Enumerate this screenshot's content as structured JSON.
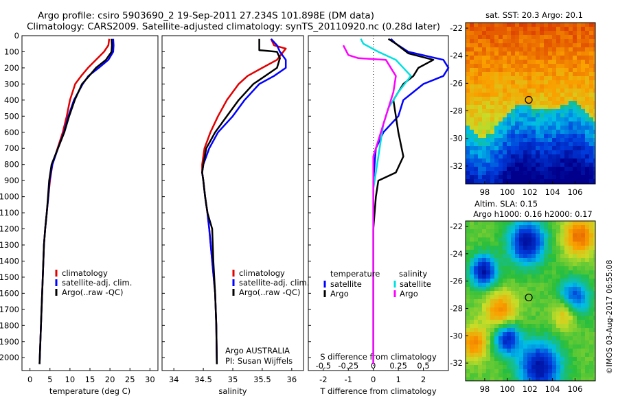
{
  "header": {
    "line1": "Argo profile: csiro 5903690_2 19-Sep-2011 27.234S 101.898E (DM data)",
    "line2": "Climatology: CARS2009. Satellite-adjusted climatology: synTS_20110920.nc (0.28d later)"
  },
  "colors": {
    "climatology": "#e00000",
    "satellite": "#0000ff",
    "argo": "#000000",
    "argo_salinity": "#ff00ff",
    "satellite_salinity": "#00e0e0"
  },
  "chart_data": [
    {
      "type": "line",
      "panel": "temperature",
      "xlabel": "temperature (deg C)",
      "xticks": [
        0,
        5,
        10,
        15,
        20,
        25,
        30
      ],
      "xlim": [
        -2,
        32
      ],
      "ylim": [
        0,
        2080
      ],
      "yticks": [
        0,
        100,
        200,
        300,
        400,
        500,
        600,
        700,
        800,
        900,
        1000,
        1100,
        1200,
        1300,
        1400,
        1500,
        1600,
        1700,
        1800,
        1900,
        2000
      ],
      "legend": [
        "climatology",
        "satellite-adj. clim.",
        "Argo(..raw -QC)"
      ],
      "series": [
        {
          "name": "climatology",
          "color": "#e00000",
          "x": [
            19.8,
            19.6,
            18.5,
            16.5,
            14.5,
            12.8,
            11.3,
            10.0,
            9.2,
            8.2,
            6.9,
            5.6,
            5.0,
            4.6,
            4.2,
            3.8,
            3.5,
            3.2,
            2.9,
            2.6,
            2.4
          ],
          "y": [
            20,
            60,
            100,
            150,
            200,
            250,
            300,
            400,
            500,
            600,
            700,
            800,
            900,
            1000,
            1100,
            1200,
            1300,
            1500,
            1700,
            1900,
            2040
          ]
        },
        {
          "name": "satellite-adj. clim.",
          "color": "#0000ff",
          "x": [
            20.8,
            20.9,
            20.8,
            19.6,
            17.2,
            14.6,
            13.2,
            11.0,
            9.6,
            8.5,
            7.0,
            5.6,
            4.9,
            4.6,
            4.2,
            3.8,
            3.5,
            3.2,
            2.9,
            2.6,
            2.4
          ],
          "y": [
            20,
            60,
            100,
            150,
            200,
            250,
            300,
            400,
            500,
            600,
            700,
            800,
            900,
            1000,
            1100,
            1200,
            1300,
            1500,
            1700,
            1900,
            2040
          ]
        },
        {
          "name": "Argo(..raw -QC)",
          "color": "#000000",
          "x": [
            20.4,
            20.5,
            20.4,
            19.0,
            16.5,
            14.8,
            13.0,
            11.2,
            9.8,
            8.6,
            7.0,
            5.4,
            4.8,
            4.5,
            4.2,
            3.8,
            3.5,
            3.2,
            2.9,
            2.6,
            2.4
          ],
          "y": [
            20,
            60,
            100,
            150,
            200,
            250,
            300,
            400,
            500,
            600,
            700,
            800,
            900,
            1000,
            1100,
            1200,
            1300,
            1500,
            1700,
            1900,
            2040
          ]
        }
      ]
    },
    {
      "type": "line",
      "panel": "salinity",
      "xlabel": "salinity",
      "xticks": [
        34,
        34.5,
        35,
        35.5,
        36
      ],
      "xticklabels": [
        "34",
        "34.5",
        "35",
        "35.5",
        "36"
      ],
      "xlim": [
        33.8,
        36.2
      ],
      "ylim": [
        0,
        2080
      ],
      "legend": [
        "climatology",
        "satellite-adj. clim.",
        "Argo(..raw -QC)"
      ],
      "annotation": [
        "Argo AUSTRALIA",
        "PI: Susan Wijffels"
      ],
      "series": [
        {
          "name": "climatology",
          "color": "#e00000",
          "x": [
            35.65,
            35.7,
            35.9,
            35.75,
            35.5,
            35.25,
            35.1,
            34.9,
            34.75,
            34.62,
            34.52,
            34.48,
            34.48,
            34.5,
            34.53,
            34.57,
            34.6,
            34.65,
            34.7,
            34.72,
            34.73
          ],
          "y": [
            20,
            60,
            80,
            150,
            200,
            250,
            300,
            400,
            500,
            600,
            700,
            800,
            850,
            900,
            1000,
            1100,
            1200,
            1400,
            1600,
            1800,
            2040
          ]
        },
        {
          "name": "satellite-adj. clim.",
          "color": "#0000ff",
          "x": [
            35.65,
            35.75,
            35.8,
            35.9,
            35.9,
            35.7,
            35.45,
            35.2,
            35.0,
            34.75,
            34.6,
            34.5,
            34.48,
            34.5,
            34.53,
            34.57,
            34.6,
            34.65,
            34.7,
            34.72,
            34.73
          ],
          "y": [
            20,
            60,
            100,
            150,
            200,
            250,
            300,
            400,
            500,
            600,
            700,
            800,
            850,
            900,
            1000,
            1100,
            1200,
            1400,
            1600,
            1800,
            2040
          ]
        },
        {
          "name": "Argo(..raw -QC)",
          "color": "#000000",
          "x": [
            35.45,
            35.45,
            35.75,
            35.8,
            35.75,
            35.55,
            35.35,
            35.1,
            34.9,
            34.7,
            34.55,
            34.5,
            34.48,
            34.5,
            34.53,
            34.57,
            34.65,
            34.67,
            34.7,
            34.72,
            34.73
          ],
          "y": [
            20,
            90,
            100,
            140,
            200,
            250,
            300,
            400,
            500,
            600,
            700,
            800,
            850,
            900,
            1000,
            1100,
            1200,
            1400,
            1600,
            1800,
            2040
          ]
        }
      ]
    },
    {
      "type": "line",
      "panel": "difference",
      "xlabel": "T difference from climatology",
      "xlabel_top": "S difference from climatology",
      "xticks": [
        -2,
        -1,
        0,
        1,
        2
      ],
      "xticks_s": [
        -0.5,
        -0.25,
        0,
        0.25,
        0.5
      ],
      "xticklabels_s": [
        "-0.5",
        "-0.25",
        "0",
        "0.25",
        "0.5"
      ],
      "xlim": [
        -2.6,
        3.0
      ],
      "ylim": [
        0,
        2080
      ],
      "legend_temperature": {
        "title": "temperature",
        "items": [
          "satellite",
          "Argo"
        ]
      },
      "legend_salinity": {
        "title": "salinity",
        "items": [
          "satellite",
          "Argo"
        ]
      },
      "series": [
        {
          "name": "satellite",
          "group": "temperature",
          "color": "#0000ff",
          "x": [
            0.7,
            0.9,
            1.4,
            2.8,
            3.0,
            2.8,
            2.0,
            1.6,
            1.2,
            1.0,
            0.4,
            0.1,
            0.05,
            0,
            0,
            0,
            0,
            0,
            0,
            0
          ],
          "y": [
            20,
            50,
            100,
            150,
            200,
            250,
            300,
            350,
            400,
            500,
            600,
            700,
            800,
            900,
            1000,
            1200,
            1400,
            1600,
            1800,
            2040
          ]
        },
        {
          "name": "Argo",
          "group": "temperature",
          "color": "#000000",
          "x": [
            0.6,
            0.9,
            1.4,
            2.4,
            1.8,
            1.6,
            1.2,
            1.0,
            0.8,
            0.9,
            1.0,
            1.2,
            0.9,
            0.2,
            0.1,
            0,
            0,
            0,
            0,
            0
          ],
          "y": [
            20,
            50,
            110,
            150,
            200,
            250,
            300,
            350,
            400,
            500,
            600,
            750,
            850,
            900,
            1000,
            1200,
            1400,
            1600,
            1800,
            2040
          ]
        },
        {
          "name": "satellite",
          "group": "salinity",
          "color": "#00e0e0",
          "x": [
            -0.5,
            -0.4,
            0.2,
            0.9,
            1.5,
            1.0,
            0.6,
            0.4,
            0.3,
            0.2,
            0.1,
            0,
            0,
            0,
            0,
            0,
            0
          ],
          "y": [
            20,
            50,
            100,
            150,
            250,
            350,
            450,
            550,
            650,
            750,
            850,
            950,
            1100,
            1300,
            1500,
            1800,
            2040
          ]
        },
        {
          "name": "Argo",
          "group": "salinity",
          "color": "#ff00ff",
          "x": [
            -1.2,
            -1.0,
            -0.6,
            0.5,
            0.9,
            0.8,
            0.6,
            0.4,
            0.2,
            0,
            0,
            0,
            0,
            0,
            0
          ],
          "y": [
            60,
            120,
            140,
            150,
            250,
            350,
            450,
            550,
            650,
            750,
            900,
            1100,
            1400,
            1700,
            2040
          ]
        }
      ]
    },
    {
      "type": "heatmap",
      "panel": "sst-map",
      "title": "sat. SST: 20.3 Argo: 20.1",
      "xticks": [
        98,
        100,
        102,
        104,
        106
      ],
      "yticks": [
        -22,
        -24,
        -26,
        -28,
        -30,
        -32
      ],
      "xlim": [
        96.3,
        107.8
      ],
      "ylim": [
        -33.3,
        -21.6
      ],
      "marker": {
        "lon": 101.9,
        "lat": -27.2
      }
    },
    {
      "type": "heatmap",
      "panel": "sla-map",
      "title": "Altim. SLA: 0.15",
      "subtitle": "Argo h1000: 0.16 h2000: 0.17",
      "xticks": [
        98,
        100,
        102,
        104,
        106
      ],
      "yticks": [
        -22,
        -24,
        -26,
        -28,
        -30,
        -32
      ],
      "xlim": [
        96.3,
        107.8
      ],
      "ylim": [
        -33.3,
        -21.6
      ],
      "marker": {
        "lon": 101.9,
        "lat": -27.2
      }
    }
  ],
  "side_label": "©IMOS 03-Aug-2017 06:55:08"
}
